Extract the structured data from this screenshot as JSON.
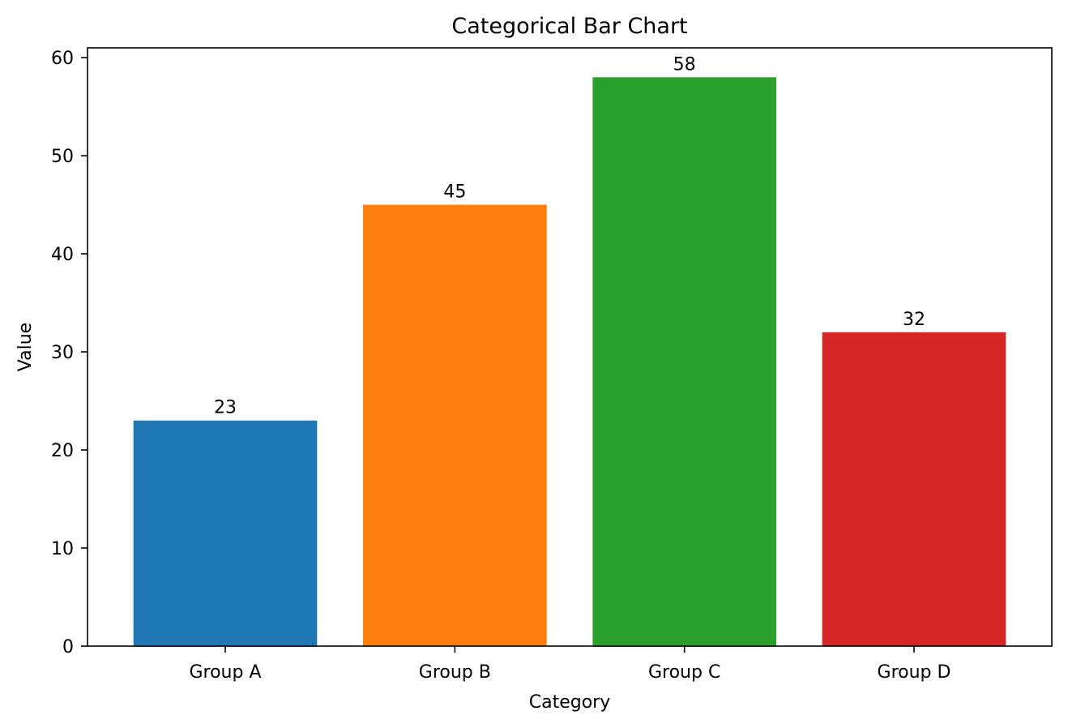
{
  "chart_data": {
    "type": "bar",
    "title": "Categorical Bar Chart",
    "xlabel": "Category",
    "ylabel": "Value",
    "categories": [
      "Group A",
      "Group B",
      "Group C",
      "Group D"
    ],
    "values": [
      23,
      45,
      58,
      32
    ],
    "data_labels": [
      "23",
      "45",
      "58",
      "32"
    ],
    "colors": [
      "#1f77b4",
      "#ff7f0e",
      "#2ca02c",
      "#d62728"
    ],
    "ylim": [
      0,
      61
    ],
    "yticks": [
      0,
      10,
      20,
      30,
      40,
      50,
      60
    ],
    "ytick_labels": [
      "0",
      "10",
      "20",
      "30",
      "40",
      "50",
      "60"
    ],
    "grid": false,
    "legend": "none"
  }
}
